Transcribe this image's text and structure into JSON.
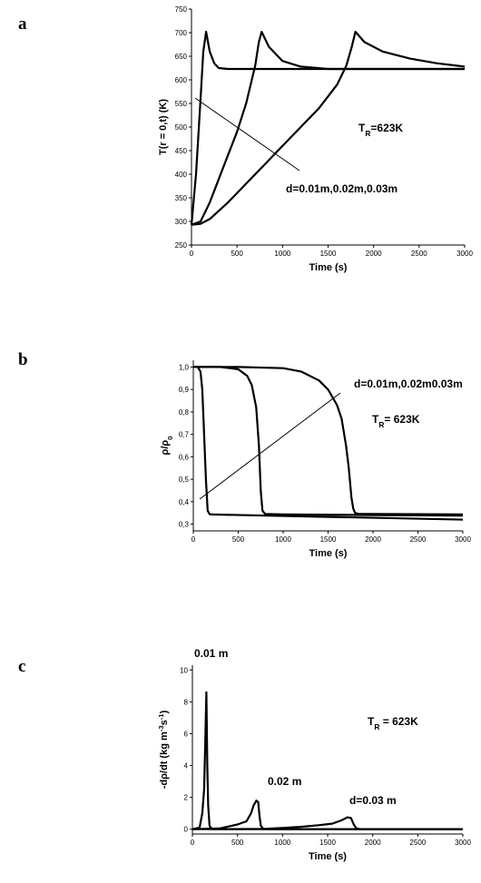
{
  "chart_data": [
    {
      "type": "line",
      "panel_label": "a",
      "xlabel": "Time (s)",
      "ylabel": "T(r = 0,t) (K)",
      "xlim": [
        0,
        3000
      ],
      "xticks": [
        0,
        500,
        1000,
        1500,
        2000,
        2500,
        3000
      ],
      "ylim": [
        250,
        750
      ],
      "yticks": [
        250,
        300,
        350,
        400,
        450,
        500,
        550,
        600,
        650,
        700,
        750
      ],
      "annotations": [
        [
          "T",
          {
            "sub": "R"
          },
          "=623K"
        ],
        [
          "d=0.01m,0.02m,0.03m"
        ]
      ],
      "series": [
        {
          "color": "#000000",
          "x": [
            0,
            50,
            100,
            130,
            160,
            200,
            250,
            300,
            400,
            3000
          ],
          "values": [
            293,
            400,
            560,
            660,
            702,
            660,
            635,
            625,
            623,
            623
          ]
        },
        {
          "color": "#000000",
          "x": [
            0,
            100,
            200,
            300,
            400,
            500,
            600,
            700,
            740,
            770,
            850,
            1000,
            1200,
            1500,
            3000
          ],
          "values": [
            293,
            300,
            340,
            390,
            440,
            490,
            550,
            630,
            680,
            702,
            670,
            640,
            628,
            623,
            623
          ]
        },
        {
          "color": "#000000",
          "x": [
            0,
            100,
            200,
            400,
            600,
            800,
            1000,
            1200,
            1400,
            1600,
            1700,
            1760,
            1800,
            1900,
            2100,
            2400,
            2700,
            3000
          ],
          "values": [
            293,
            295,
            305,
            340,
            380,
            420,
            460,
            500,
            540,
            590,
            630,
            670,
            702,
            680,
            660,
            645,
            635,
            628
          ]
        }
      ]
    },
    {
      "type": "line",
      "panel_label": "b",
      "xlabel": "Time (s)",
      "ylabel": [
        "ρ/ρ",
        {
          "sub": "0"
        }
      ],
      "xlim": [
        0,
        3000
      ],
      "xticks": [
        0,
        500,
        1000,
        1500,
        2000,
        2500,
        3000
      ],
      "ylim": [
        0.27,
        1.03
      ],
      "yticks": [
        {
          "value": 0.3,
          "label": "0,3"
        },
        {
          "value": 0.4,
          "label": "0,4"
        },
        {
          "value": 0.5,
          "label": "0,5"
        },
        {
          "value": 0.6,
          "label": "0,6"
        },
        {
          "value": 0.7,
          "label": "0,7"
        },
        {
          "value": 0.8,
          "label": "0,8"
        },
        {
          "value": 0.9,
          "label": "0,9"
        },
        {
          "value": 1.0,
          "label": "1,0"
        }
      ],
      "annotations": [
        [
          "d=0.01m,0.02m0.03m"
        ],
        [
          "T",
          {
            "sub": "R"
          },
          "= 623K"
        ]
      ],
      "series": [
        {
          "color": "#000000",
          "x": [
            0,
            50,
            80,
            100,
            120,
            140,
            160,
            180,
            200,
            3000
          ],
          "values": [
            1.0,
            1.0,
            0.98,
            0.9,
            0.7,
            0.5,
            0.36,
            0.345,
            0.343,
            0.32
          ]
        },
        {
          "color": "#000000",
          "x": [
            0,
            300,
            500,
            600,
            650,
            700,
            730,
            750,
            770,
            800,
            1000,
            3000
          ],
          "values": [
            1.0,
            1.0,
            0.99,
            0.96,
            0.92,
            0.82,
            0.65,
            0.45,
            0.36,
            0.345,
            0.343,
            0.338
          ]
        },
        {
          "color": "#000000",
          "x": [
            0,
            500,
            1000,
            1200,
            1400,
            1500,
            1600,
            1650,
            1700,
            1730,
            1760,
            1780,
            1800,
            1850,
            2000,
            3000
          ],
          "values": [
            1.0,
            1.0,
            0.995,
            0.98,
            0.94,
            0.9,
            0.83,
            0.77,
            0.65,
            0.55,
            0.42,
            0.37,
            0.35,
            0.345,
            0.345,
            0.343
          ]
        }
      ]
    },
    {
      "type": "line",
      "panel_label": "c",
      "xlabel": "Time (s)",
      "ylabel": [
        "-dρ/dt (kg m",
        {
          "sup": "-3"
        },
        "s",
        {
          "sup": "-1"
        },
        ")"
      ],
      "xlim": [
        0,
        3000
      ],
      "xticks": [
        0,
        500,
        1000,
        1500,
        2000,
        2500,
        3000
      ],
      "ylim": [
        -0.3,
        10.3
      ],
      "yticks": [
        0,
        2,
        4,
        6,
        8,
        10
      ],
      "annotations": [
        [
          "0.01 m"
        ],
        [
          "0.02 m"
        ],
        [
          "d=0.03 m"
        ],
        [
          "T",
          {
            "sub": "R"
          },
          " = 623K"
        ]
      ],
      "series": [
        {
          "color": "#000000",
          "x": [
            0,
            80,
            110,
            130,
            145,
            155,
            165,
            175,
            190,
            220,
            3000
          ],
          "values": [
            0,
            0.1,
            1,
            2.5,
            6,
            8.6,
            4,
            1.5,
            0.2,
            0,
            0
          ]
        },
        {
          "color": "#000000",
          "x": [
            0,
            300,
            500,
            600,
            650,
            680,
            710,
            730,
            745,
            760,
            790,
            850,
            3000
          ],
          "values": [
            0,
            0.05,
            0.3,
            0.5,
            1.0,
            1.5,
            1.8,
            1.7,
            0.8,
            0.2,
            0,
            0,
            0
          ]
        },
        {
          "color": "#000000",
          "x": [
            0,
            800,
            1000,
            1200,
            1400,
            1550,
            1650,
            1720,
            1760,
            1790,
            1820,
            1870,
            3000
          ],
          "values": [
            0,
            0.02,
            0.08,
            0.15,
            0.25,
            0.35,
            0.55,
            0.75,
            0.7,
            0.3,
            0.05,
            0,
            0
          ]
        }
      ]
    }
  ]
}
